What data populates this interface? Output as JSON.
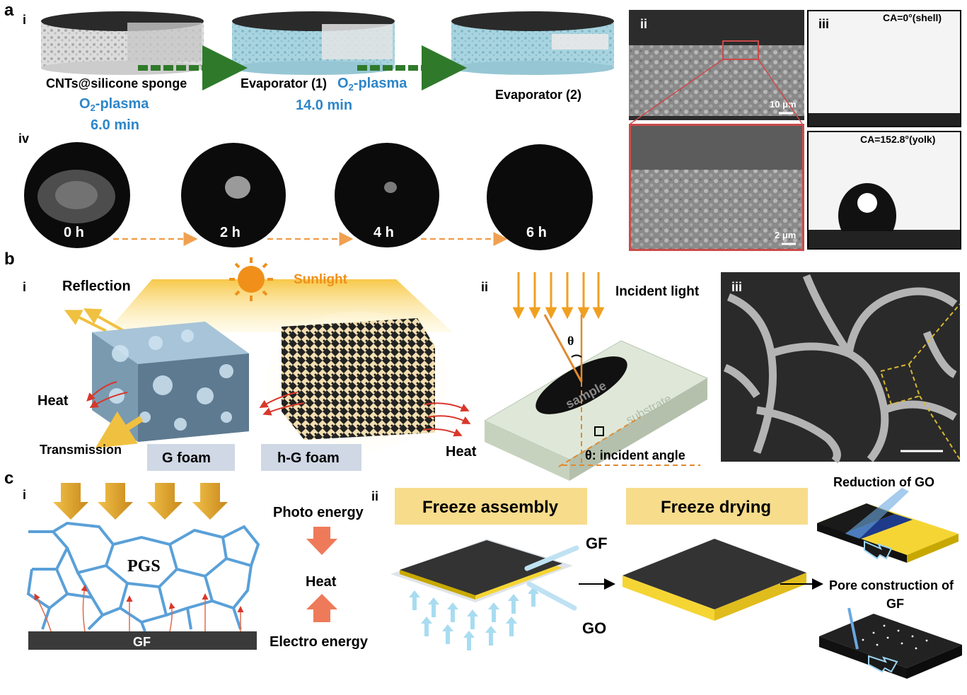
{
  "panel_labels": {
    "a": "a",
    "b": "b",
    "c": "c",
    "a_i": "i",
    "a_ii": "ii",
    "a_iii": "iii",
    "a_iv": "iv",
    "b_i": "i",
    "b_ii": "ii",
    "b_iii": "iii",
    "c_i": "i",
    "c_ii": "ii"
  },
  "panel_a": {
    "sponge_label": "CNTs@silicone sponge",
    "step1_label": "Evaporator (1)",
    "evaporator2_label": "Evaporator (2)",
    "plasma_prefix": "O",
    "plasma_sub": "2",
    "plasma_suffix": "-plasma",
    "time1": "6.0 min",
    "time2": "14.0 min",
    "sem_scale_top": "10 μm",
    "sem_scale_bottom": "2 μm",
    "ca_shell": "CA=0°(shell)",
    "ca_yolk": "CA=152.8°(yolk)",
    "timepoints": [
      "0 h",
      "2 h",
      "4 h",
      "6 h"
    ]
  },
  "panel_b": {
    "sunlight": "Sunlight",
    "reflection": "Reflection",
    "heat_left": "Heat",
    "heat_right": "Heat",
    "transmission": "Transmission",
    "g_foam": "G foam",
    "hg_foam": "h-G foam",
    "incident_light": "Incident light",
    "theta": "θ",
    "sample": "sample",
    "substrate": "substrate",
    "incident_angle": "θ: incident angle"
  },
  "panel_c": {
    "pgs": "PGS",
    "gf_bar": "GF",
    "photo_energy": "Photo energy",
    "heat": "Heat",
    "electro_energy": "Electro energy",
    "freeze_assembly": "Freeze assembly",
    "freeze_drying": "Freeze drying",
    "gf_label": "GF",
    "go_label": "GO",
    "reduction_of_go": "Reduction of GO",
    "pore_construction_line1": "Pore construction of",
    "pore_construction_line2": "GF"
  },
  "colors": {
    "plasma_blue": "#2e86c8",
    "arrow_green": "#2f7a2a",
    "dashed_orange": "#f0a050",
    "sun_orange": "#f0901a",
    "network_blue": "#5aa0d8",
    "label_box_blue": "#cfd8e4",
    "label_box_yellow": "#f7dc8c",
    "sheet_yellow": "#f5d534",
    "sheet_dark": "#333333",
    "heat_red": "#d9372a",
    "energy_arrow": "#ee7a5a"
  }
}
